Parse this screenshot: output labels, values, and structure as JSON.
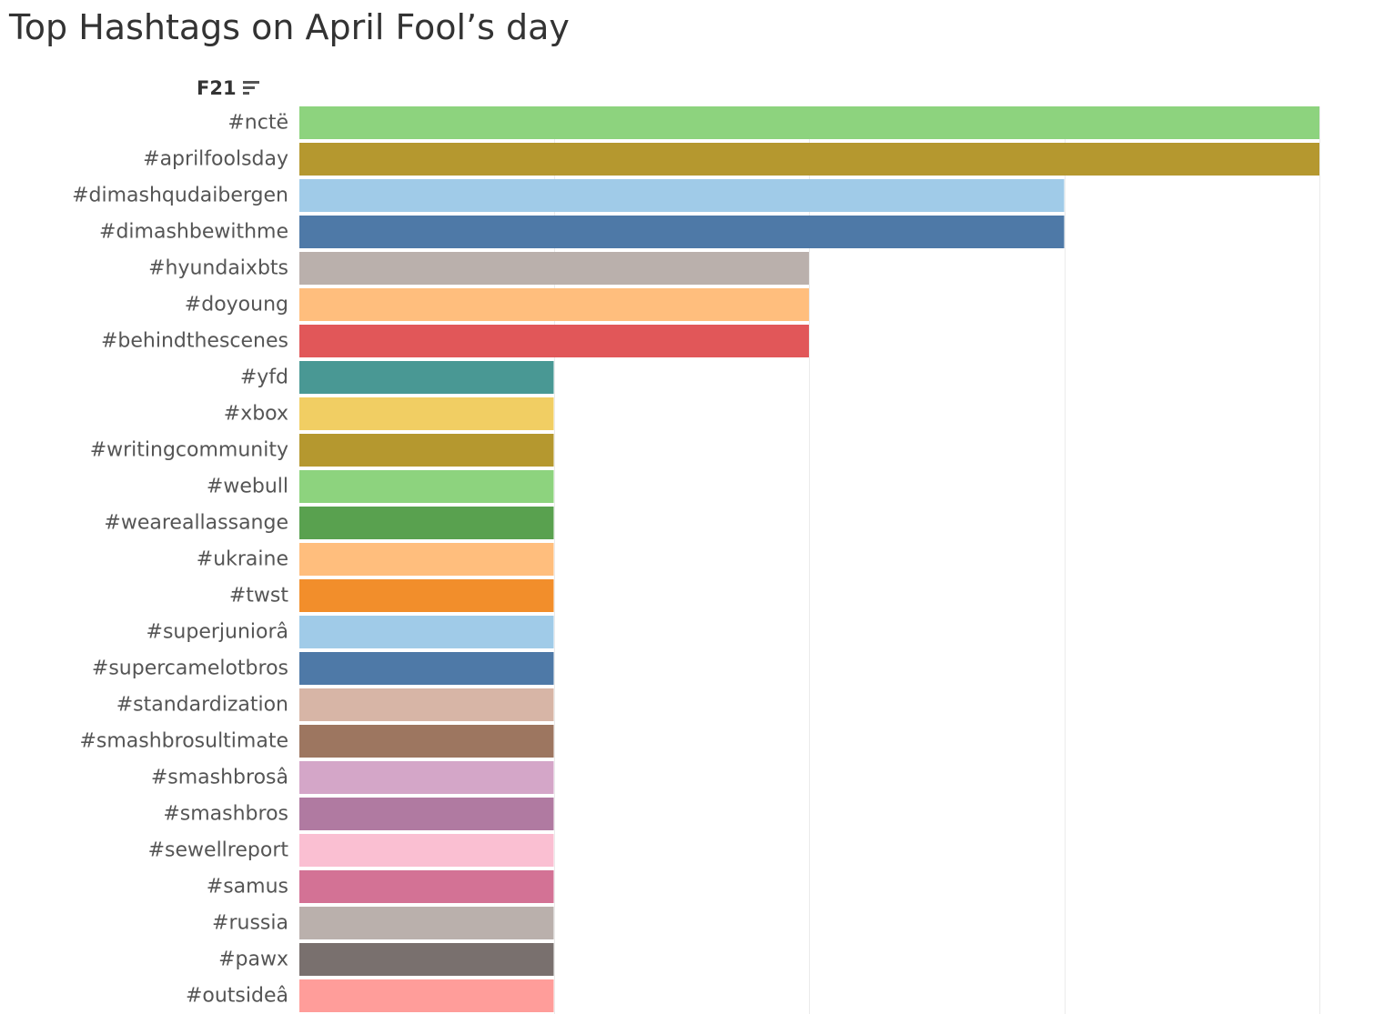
{
  "title": "Top Hashtags on April Fool’s day",
  "header": {
    "field_label": "F21",
    "sort_icon": "sort-descending-icon"
  },
  "chart_data": {
    "type": "bar",
    "orientation": "horizontal",
    "title": "Top Hashtags on April Fool’s day",
    "category_axis_label": "F21",
    "value_axis_label": "",
    "categories": [
      "#nctë",
      "#aprilfoolsday",
      "#dimashqudaibergen",
      "#dimashbewithme",
      "#hyundaixbts",
      "#doyoung",
      "#behindthescenes",
      "#yfd",
      "#xbox",
      "#writingcommunity",
      "#webull",
      "#weareallassange",
      "#ukraine",
      "#twst",
      "#superjuniorâ",
      "#supercamelotbros",
      "#standardization",
      "#smashbrosultimate",
      "#smashbrosâ",
      "#smashbros",
      "#sewellreport",
      "#samus",
      "#russia",
      "#pawx",
      "#outsideâ"
    ],
    "values": [
      4,
      4,
      3,
      3,
      2,
      2,
      2,
      1,
      1,
      1,
      1,
      1,
      1,
      1,
      1,
      1,
      1,
      1,
      1,
      1,
      1,
      1,
      1,
      1,
      1
    ],
    "xlim": [
      0,
      4
    ],
    "gridlines": [
      1,
      2,
      3,
      4
    ],
    "grid": true,
    "colors": [
      "#8dd37e",
      "#b5982f",
      "#a0cbe8",
      "#4e79a7",
      "#bab0ac",
      "#ffbe7d",
      "#e15759",
      "#499894",
      "#f1ce63",
      "#b5982f",
      "#8dd37e",
      "#59a14f",
      "#ffbe7d",
      "#f28e2b",
      "#a0cbe8",
      "#4e79a7",
      "#d7b5a6",
      "#9d7660",
      "#d4a6c8",
      "#b07aa1",
      "#fabfd2",
      "#d37295",
      "#bab0ac",
      "#79706e",
      "#ff9d9a"
    ]
  }
}
